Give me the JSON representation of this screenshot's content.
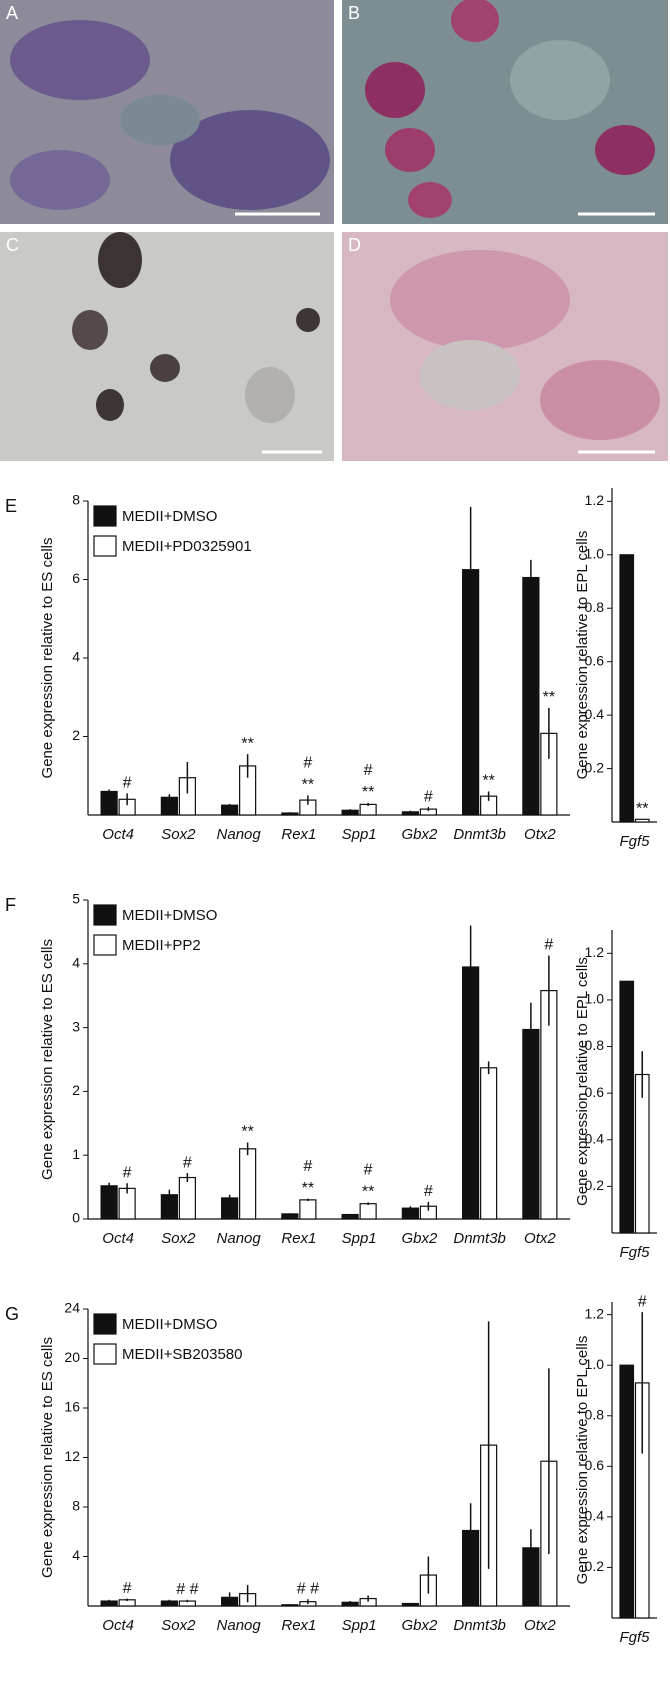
{
  "image_panels": [
    {
      "label": "A"
    },
    {
      "label": "B"
    },
    {
      "label": "C"
    },
    {
      "label": "D"
    }
  ],
  "chart_data": [
    {
      "type": "bar",
      "panel": "E",
      "y_label": "Gene expression relative to ES cells",
      "legend": true,
      "categories": [
        "Oct4",
        "Sox2",
        "Nanog",
        "Rex1",
        "Spp1",
        "Gbx2",
        "Dnmt3b",
        "Otx2"
      ],
      "series": [
        {
          "name": "MEDII+DMSO",
          "color": "#111111",
          "values": [
            0.6,
            0.45,
            0.25,
            0.05,
            0.12,
            0.08,
            6.25,
            6.05
          ],
          "errors": [
            0.05,
            0.08,
            0.03,
            0.02,
            0.03,
            0.03,
            1.6,
            0.45
          ]
        },
        {
          "name": "MEDII+PD0325901",
          "color": "#ffffff",
          "values": [
            0.4,
            0.95,
            1.25,
            0.38,
            0.27,
            0.15,
            0.48,
            2.08
          ],
          "errors": [
            0.15,
            0.4,
            0.3,
            0.12,
            0.04,
            0.05,
            0.12,
            0.65
          ],
          "annotations": [
            [
              "#"
            ],
            null,
            [
              "**"
            ],
            [
              "#",
              "**"
            ],
            [
              "#",
              "**"
            ],
            [
              "#"
            ],
            [
              "**"
            ],
            [
              "**"
            ]
          ]
        }
      ],
      "ylim": [
        0,
        8
      ],
      "yticks": [
        2,
        4,
        6,
        8
      ]
    },
    {
      "type": "bar",
      "y_label": "Gene expression relative to EPL cells",
      "categories": [
        "Fgf5"
      ],
      "series": [
        {
          "color": "#111111",
          "values": [
            1.0
          ],
          "errors": [
            0
          ]
        },
        {
          "color": "#ffffff",
          "values": [
            0.01
          ],
          "errors": [
            0
          ],
          "annotations": [
            [
              "**"
            ]
          ]
        }
      ],
      "ylim": [
        0,
        1.25
      ],
      "yticks": [
        0.2,
        0.4,
        0.6,
        0.8,
        {
          "value": 1.0,
          "label": "1.0"
        },
        1.2
      ]
    },
    {
      "type": "bar",
      "panel": "F",
      "y_label": "Gene expression relative to ES cells",
      "legend": true,
      "categories": [
        "Oct4",
        "Sox2",
        "Nanog",
        "Rex1",
        "Spp1",
        "Gbx2",
        "Dnmt3b",
        "Otx2"
      ],
      "series": [
        {
          "name": "MEDII+DMSO",
          "color": "#111111",
          "values": [
            0.52,
            0.38,
            0.33,
            0.08,
            0.07,
            0.17,
            3.95,
            2.97
          ],
          "errors": [
            0.05,
            0.08,
            0.05,
            0.01,
            0.01,
            0.03,
            0.65,
            0.42
          ]
        },
        {
          "name": "MEDII+PP2",
          "color": "#ffffff",
          "values": [
            0.48,
            0.65,
            1.1,
            0.3,
            0.24,
            0.2,
            2.37,
            3.58
          ],
          "errors": [
            0.08,
            0.07,
            0.1,
            0.02,
            0.02,
            0.07,
            0.1,
            0.55
          ],
          "annotations": [
            [
              "#"
            ],
            [
              "#"
            ],
            [
              "**"
            ],
            [
              "#",
              "**"
            ],
            [
              "#",
              "**"
            ],
            [
              "#"
            ],
            null,
            [
              "#"
            ]
          ]
        }
      ],
      "ylim": [
        0,
        5
      ],
      "yticks": [
        0,
        1,
        2,
        3,
        4,
        5
      ]
    },
    {
      "type": "bar",
      "y_label": "Gene expression relative to EPL cells",
      "categories": [
        "Fgf5"
      ],
      "series": [
        {
          "color": "#111111",
          "values": [
            1.08
          ],
          "errors": [
            0
          ]
        },
        {
          "color": "#ffffff",
          "values": [
            0.68
          ],
          "errors": [
            0.1
          ]
        }
      ],
      "ylim": [
        0,
        1.3
      ],
      "yticks": [
        0.2,
        0.4,
        0.6,
        0.8,
        {
          "value": 1.0,
          "label": "1.0"
        },
        1.2
      ]
    },
    {
      "type": "bar",
      "panel": "G",
      "y_label": "Gene expression relative to ES cells",
      "legend": true,
      "categories": [
        "Oct4",
        "Sox2",
        "Nanog",
        "Rex1",
        "Spp1",
        "Gbx2",
        "Dnmt3b",
        "Otx2"
      ],
      "series": [
        {
          "name": "MEDII+DMSO",
          "color": "#111111",
          "values": [
            0.4,
            0.4,
            0.7,
            0.1,
            0.3,
            0.2,
            6.1,
            4.7
          ],
          "errors": [
            0.1,
            0.1,
            0.4,
            0.05,
            0.1,
            0.05,
            2.2,
            1.5
          ]
        },
        {
          "name": "MEDII+SB203580",
          "color": "#ffffff",
          "values": [
            0.5,
            0.4,
            1.0,
            0.35,
            0.6,
            2.5,
            13,
            11.7
          ],
          "errors": [
            0.1,
            0.1,
            0.7,
            0.2,
            0.25,
            1.5,
            10,
            7.5
          ],
          "annotations": [
            [
              "#"
            ],
            [
              "# #"
            ],
            null,
            [
              "# #"
            ],
            null,
            null,
            null,
            null
          ]
        }
      ],
      "ylim": [
        0,
        24
      ],
      "yticks": [
        4,
        8,
        12,
        16,
        20,
        24
      ]
    },
    {
      "type": "bar",
      "y_label": "Gene expression relative to EPL cells",
      "categories": [
        "Fgf5"
      ],
      "series": [
        {
          "color": "#111111",
          "values": [
            1.0
          ],
          "errors": [
            0
          ]
        },
        {
          "color": "#ffffff",
          "values": [
            0.93
          ],
          "errors": [
            0.28
          ],
          "annotations": [
            [
              "#"
            ]
          ]
        }
      ],
      "ylim": [
        0,
        1.25
      ],
      "yticks": [
        0.2,
        0.4,
        0.6,
        0.8,
        {
          "value": 1.0,
          "label": "1.0"
        },
        1.2
      ]
    }
  ]
}
